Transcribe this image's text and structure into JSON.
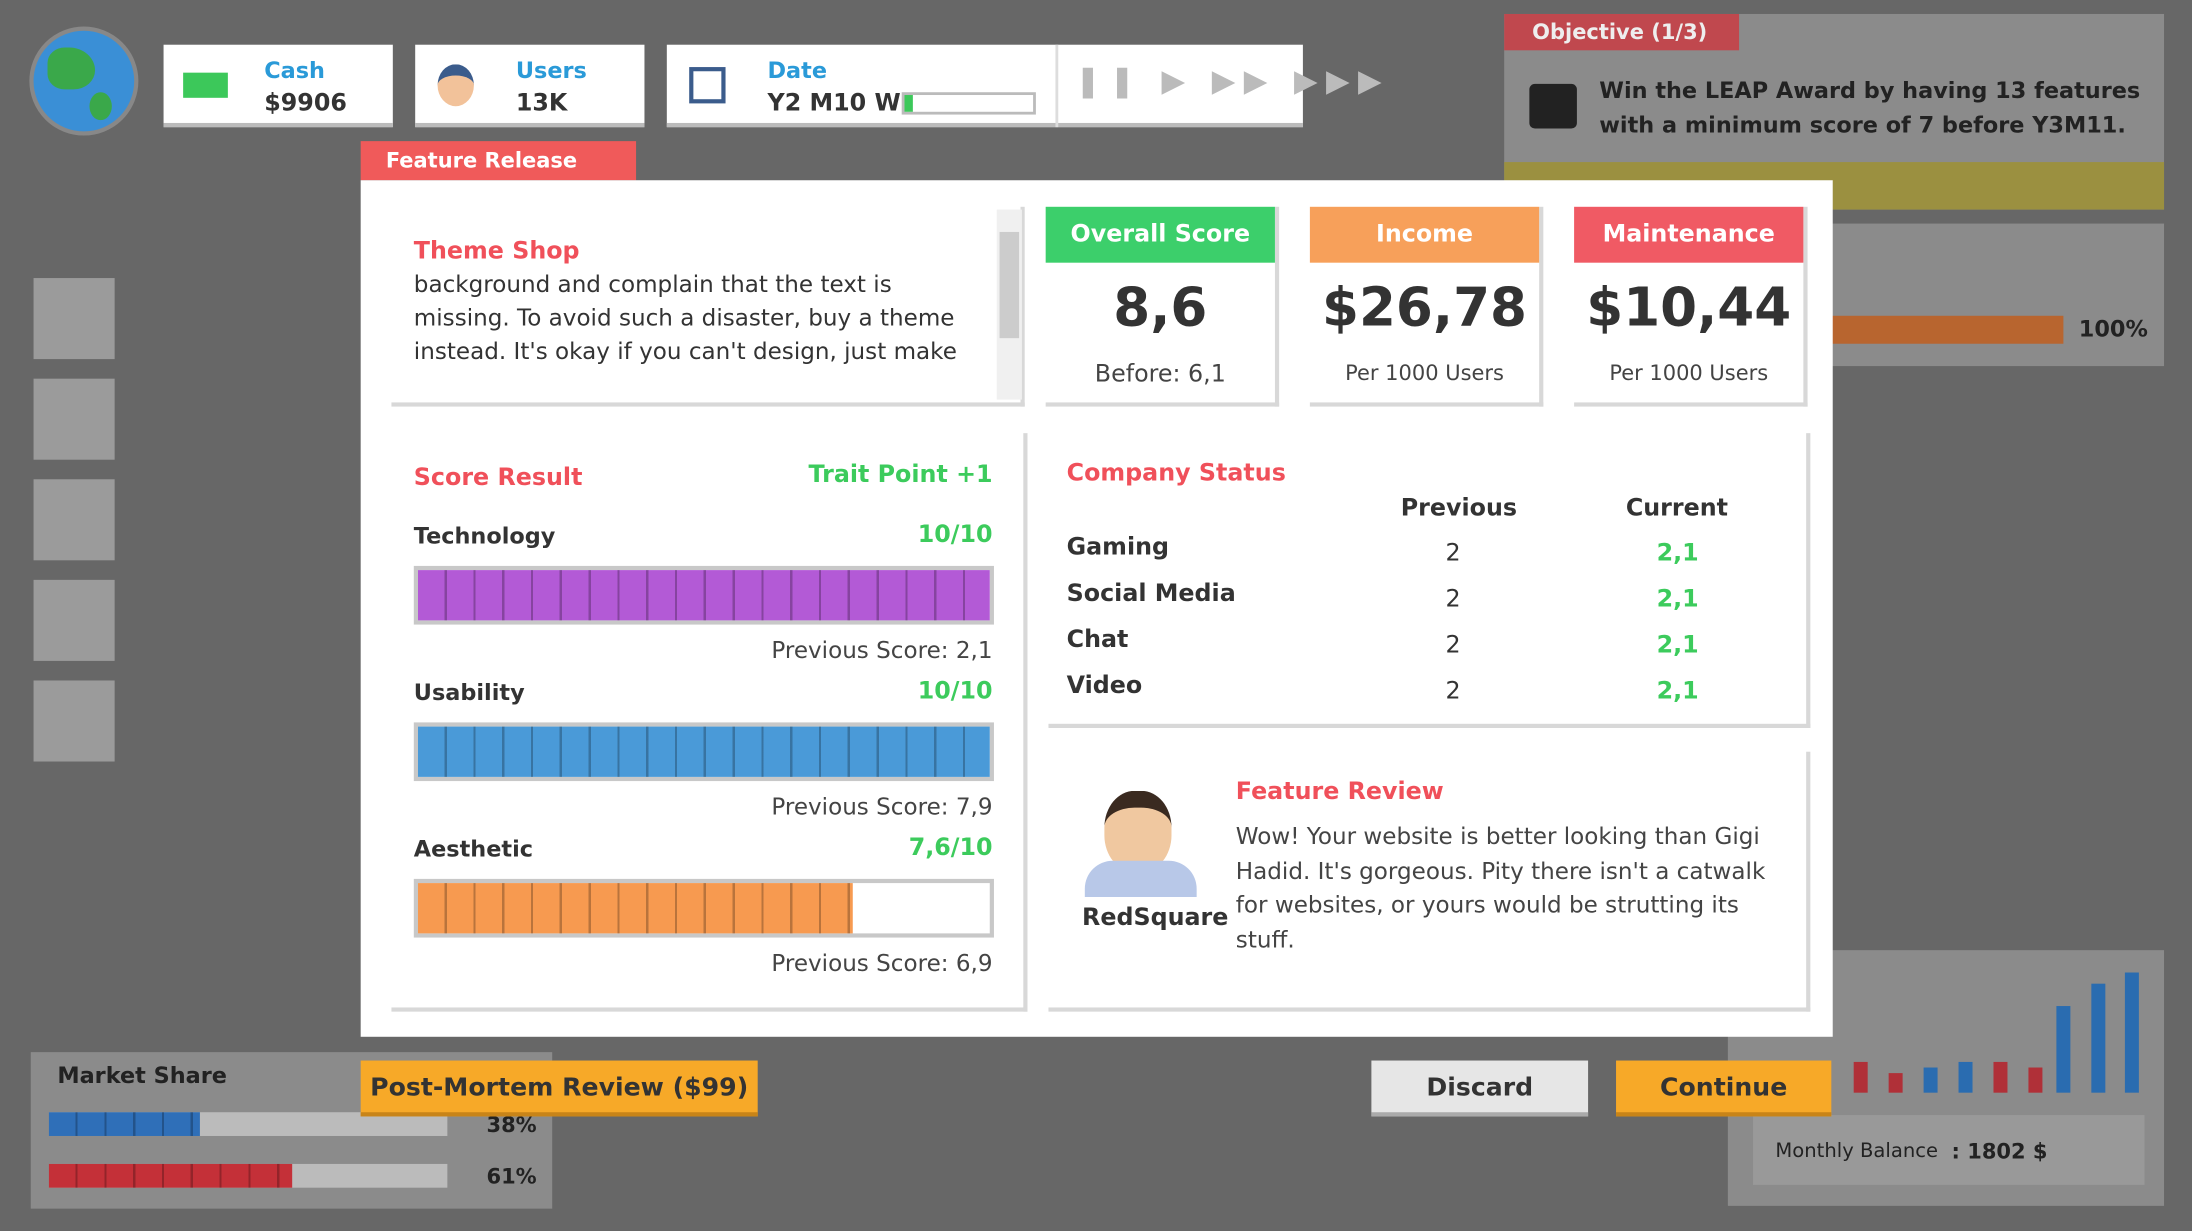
{
  "hud": {
    "cash": {
      "label": "Cash",
      "value": "$9906"
    },
    "users": {
      "label": "Users",
      "value": "13K"
    },
    "date": {
      "label": "Date",
      "value": "Y2 M10 W"
    }
  },
  "objective": {
    "title": "Objective (1/3)",
    "text": "Win the LEAP Award by having 13 features with a minimum score of 7 before Y3M11."
  },
  "background": {
    "progress_label": "100%",
    "market_share": {
      "title": "Market Share",
      "bars": [
        {
          "value": 38,
          "label": "38%"
        },
        {
          "value": 61,
          "label": "61%"
        }
      ]
    },
    "monthly_balance": {
      "label": "Monthly Balance",
      "value": ": 1802 $"
    }
  },
  "dialog": {
    "tab": "Feature Release",
    "feature": {
      "name": "Theme Shop",
      "description": "background and complain that the text is missing. To avoid such a disaster, buy a theme instead. It's okay if you can't design, just make"
    },
    "cards": [
      {
        "title": "Overall Score",
        "value": "8,6",
        "note": "Before: 6,1"
      },
      {
        "title": "Income",
        "value": "$26,78",
        "note": "Per 1000 Users"
      },
      {
        "title": "Maintenance",
        "value": "$10,44",
        "note": "Per 1000 Users"
      }
    ],
    "score_result": {
      "title": "Score Result",
      "trait": "Trait Point +1",
      "items": [
        {
          "name": "Technology",
          "score": {
            "value": 10,
            "max": 10,
            "label": "10/10"
          },
          "previous": "Previous Score: 2,1"
        },
        {
          "name": "Usability",
          "score": {
            "value": 10,
            "max": 10,
            "label": "10/10"
          },
          "previous": "Previous Score: 7,9"
        },
        {
          "name": "Aesthetic",
          "score": {
            "value": 7.6,
            "max": 10,
            "label": "7,6/10"
          },
          "previous": "Previous Score: 6,9"
        }
      ]
    },
    "company_status": {
      "title": "Company Status",
      "headers": [
        "Previous",
        "Current"
      ],
      "rows": [
        [
          "Gaming",
          "2",
          "2,1"
        ],
        [
          "Social Media",
          "2",
          "2,1"
        ],
        [
          "Chat",
          "2",
          "2,1"
        ],
        [
          "Video",
          "2",
          "2,1"
        ]
      ]
    },
    "review": {
      "title": "Feature Review",
      "reviewer": "RedSquare",
      "text": "Wow! Your website is better looking than Gigi Hadid. It's gorgeous. Pity there isn't a catwalk for websites, or yours would be strutting its stuff."
    },
    "buttons": {
      "post_mortem": "Post-Mortem Review ($99)",
      "discard": "Discard",
      "continue": "Continue"
    }
  }
}
